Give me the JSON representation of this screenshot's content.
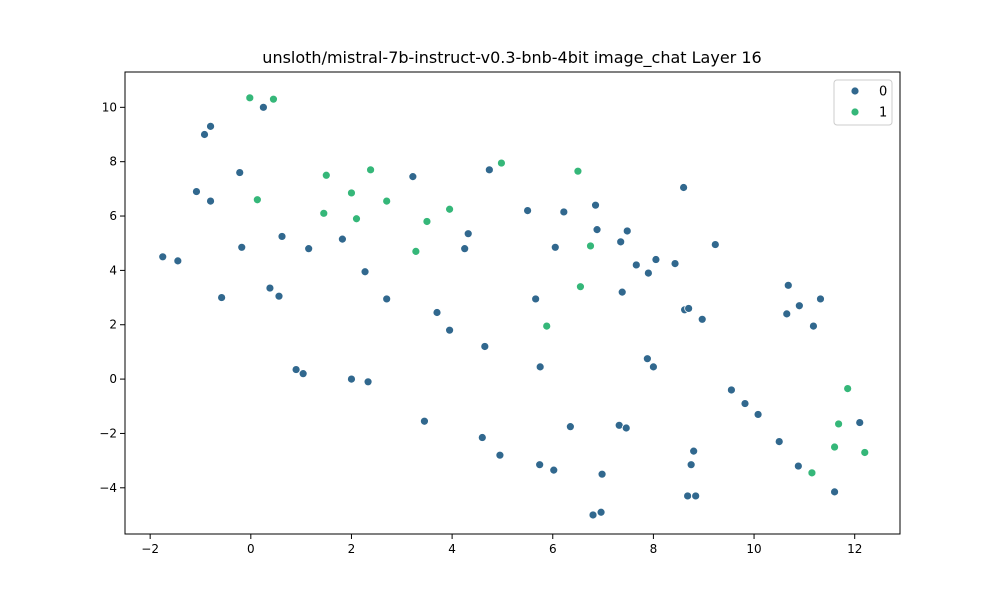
{
  "chart_data": {
    "type": "scatter",
    "title": "unsloth/mistral-7b-instruct-v0.3-bnb-4bit image_chat Layer 16",
    "xlabel": "",
    "ylabel": "",
    "xlim": [
      -2.5,
      12.9
    ],
    "ylim": [
      -5.7,
      11.3
    ],
    "x_ticks": [
      -2,
      0,
      2,
      4,
      6,
      8,
      10,
      12
    ],
    "y_ticks": [
      -4,
      -2,
      0,
      2,
      4,
      6,
      8,
      10
    ],
    "grid": false,
    "legend_position": "top-right",
    "series": [
      {
        "name": "0",
        "color": "#31688e",
        "points": [
          [
            -0.8,
            9.3
          ],
          [
            -0.92,
            9.0
          ],
          [
            0.25,
            10.0
          ],
          [
            -1.08,
            6.9
          ],
          [
            -0.8,
            6.55
          ],
          [
            -0.22,
            7.6
          ],
          [
            -1.75,
            4.5
          ],
          [
            -1.45,
            4.35
          ],
          [
            -0.18,
            4.85
          ],
          [
            -0.58,
            3.0
          ],
          [
            0.62,
            5.25
          ],
          [
            0.38,
            3.35
          ],
          [
            0.56,
            3.05
          ],
          [
            1.15,
            4.8
          ],
          [
            1.82,
            5.15
          ],
          [
            0.9,
            0.35
          ],
          [
            1.04,
            0.2
          ],
          [
            2.0,
            0.0
          ],
          [
            2.33,
            -0.1
          ],
          [
            2.27,
            3.95
          ],
          [
            2.7,
            2.95
          ],
          [
            3.22,
            7.45
          ],
          [
            3.7,
            2.45
          ],
          [
            3.95,
            1.8
          ],
          [
            4.25,
            4.8
          ],
          [
            4.32,
            5.35
          ],
          [
            4.74,
            7.7
          ],
          [
            4.65,
            1.2
          ],
          [
            3.45,
            -1.55
          ],
          [
            4.6,
            -2.15
          ],
          [
            4.95,
            -2.8
          ],
          [
            5.5,
            6.2
          ],
          [
            5.66,
            2.95
          ],
          [
            5.75,
            0.45
          ],
          [
            5.74,
            -3.15
          ],
          [
            6.02,
            -3.35
          ],
          [
            6.05,
            4.85
          ],
          [
            6.22,
            6.15
          ],
          [
            6.35,
            -1.75
          ],
          [
            6.85,
            6.4
          ],
          [
            6.88,
            5.5
          ],
          [
            6.8,
            -5.0
          ],
          [
            6.96,
            -4.9
          ],
          [
            6.98,
            -3.5
          ],
          [
            7.32,
            -1.7
          ],
          [
            7.35,
            5.05
          ],
          [
            7.48,
            5.45
          ],
          [
            7.38,
            3.2
          ],
          [
            7.46,
            -1.8
          ],
          [
            7.66,
            4.2
          ],
          [
            7.9,
            3.9
          ],
          [
            7.88,
            0.75
          ],
          [
            8.0,
            0.45
          ],
          [
            8.05,
            4.4
          ],
          [
            8.43,
            4.25
          ],
          [
            8.6,
            7.05
          ],
          [
            8.62,
            2.55
          ],
          [
            8.7,
            2.6
          ],
          [
            8.68,
            -4.3
          ],
          [
            8.75,
            -3.15
          ],
          [
            8.8,
            -2.65
          ],
          [
            8.84,
            -4.3
          ],
          [
            8.97,
            2.2
          ],
          [
            9.23,
            4.95
          ],
          [
            9.55,
            -0.4
          ],
          [
            9.82,
            -0.9
          ],
          [
            10.08,
            -1.3
          ],
          [
            10.5,
            -2.3
          ],
          [
            10.65,
            2.4
          ],
          [
            10.68,
            3.45
          ],
          [
            10.9,
            2.7
          ],
          [
            10.88,
            -3.2
          ],
          [
            11.18,
            1.95
          ],
          [
            11.32,
            2.95
          ],
          [
            11.6,
            -4.15
          ],
          [
            12.1,
            -1.6
          ]
        ]
      },
      {
        "name": "1",
        "color": "#35b779",
        "points": [
          [
            -0.02,
            10.35
          ],
          [
            0.45,
            10.3
          ],
          [
            0.13,
            6.6
          ],
          [
            1.5,
            7.5
          ],
          [
            1.45,
            6.1
          ],
          [
            2.0,
            6.85
          ],
          [
            2.1,
            5.9
          ],
          [
            2.38,
            7.7
          ],
          [
            2.7,
            6.55
          ],
          [
            3.28,
            4.7
          ],
          [
            3.5,
            5.8
          ],
          [
            3.95,
            6.25
          ],
          [
            4.98,
            7.95
          ],
          [
            5.88,
            1.95
          ],
          [
            6.5,
            7.65
          ],
          [
            6.55,
            3.4
          ],
          [
            6.75,
            4.9
          ],
          [
            11.15,
            -3.45
          ],
          [
            11.6,
            -2.5
          ],
          [
            11.68,
            -1.65
          ],
          [
            11.86,
            -0.35
          ],
          [
            12.2,
            -2.7
          ]
        ]
      }
    ]
  }
}
